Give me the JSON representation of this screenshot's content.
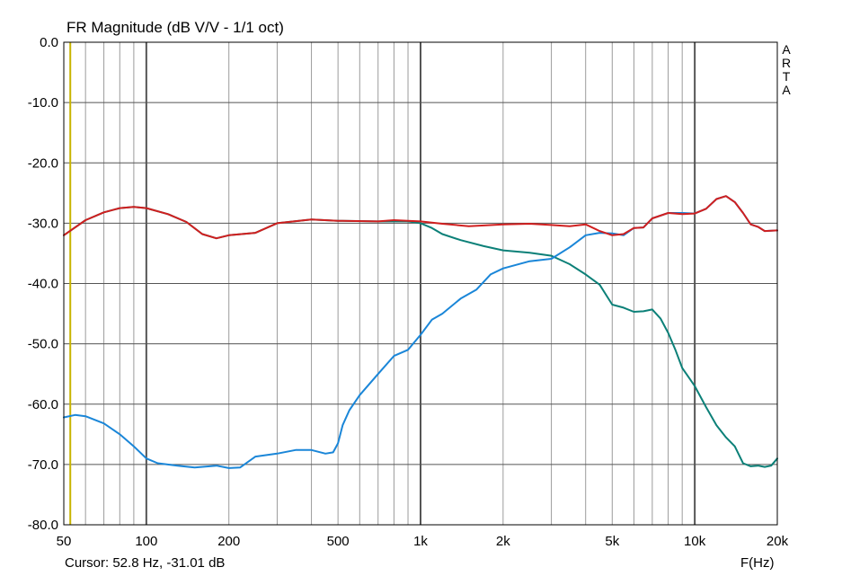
{
  "title": "FR Magnitude (dB V/V - 1/1 oct)",
  "cursor_readout": "Cursor: 52.8 Hz, -31.01 dB",
  "x_unit_label": "F(Hz)",
  "watermark": "ARTA",
  "colors": {
    "background": "#ffffff",
    "grid": "#9b9b9b",
    "major_grid": "#555555",
    "cursor_line": "#c8b400",
    "sum": "#d01f1f",
    "tweeter": "#1a86d8",
    "woofer": "#0c8078"
  },
  "chart_data": {
    "type": "line",
    "title": "FR Magnitude (dB V/V - 1/1 oct)",
    "xlabel": "F(Hz)",
    "ylabel": "",
    "x_scale": "log",
    "xlim": [
      50,
      20000
    ],
    "ylim": [
      -80,
      0
    ],
    "grid": true,
    "x_ticks": [
      {
        "value": 50,
        "label": "50"
      },
      {
        "value": 100,
        "label": "100"
      },
      {
        "value": 200,
        "label": "200"
      },
      {
        "value": 500,
        "label": "500"
      },
      {
        "value": 1000,
        "label": "1k"
      },
      {
        "value": 2000,
        "label": "2k"
      },
      {
        "value": 5000,
        "label": "5k"
      },
      {
        "value": 10000,
        "label": "10k"
      },
      {
        "value": 20000,
        "label": "20k"
      }
    ],
    "y_ticks": [
      {
        "value": 0,
        "label": "0.0"
      },
      {
        "value": -10,
        "label": "-10.0"
      },
      {
        "value": -20,
        "label": "-20.0"
      },
      {
        "value": -30,
        "label": "-30.0"
      },
      {
        "value": -40,
        "label": "-40.0"
      },
      {
        "value": -50,
        "label": "-50.0"
      },
      {
        "value": -60,
        "label": "-60.0"
      },
      {
        "value": -70,
        "label": "-70.0"
      },
      {
        "value": -80,
        "label": "-80.0"
      }
    ],
    "cursor": {
      "x": 52.8,
      "y": -31.01
    },
    "series": [
      {
        "id": "woofer",
        "color": "#0c8078",
        "points": [
          [
            50,
            -32
          ],
          [
            60,
            -29.5
          ],
          [
            70,
            -28.2
          ],
          [
            80,
            -27.5
          ],
          [
            90,
            -27.3
          ],
          [
            100,
            -27.5
          ],
          [
            120,
            -28.5
          ],
          [
            140,
            -29.8
          ],
          [
            160,
            -31.8
          ],
          [
            180,
            -32.5
          ],
          [
            200,
            -32
          ],
          [
            250,
            -31.6
          ],
          [
            300,
            -30
          ],
          [
            400,
            -29.4
          ],
          [
            500,
            -29.6
          ],
          [
            700,
            -29.7
          ],
          [
            900,
            -29.7
          ],
          [
            1000,
            -30
          ],
          [
            1100,
            -30.8
          ],
          [
            1200,
            -31.8
          ],
          [
            1400,
            -32.8
          ],
          [
            1700,
            -33.8
          ],
          [
            2000,
            -34.5
          ],
          [
            2500,
            -34.9
          ],
          [
            3000,
            -35.4
          ],
          [
            3500,
            -36.8
          ],
          [
            4000,
            -38.5
          ],
          [
            4500,
            -40.2
          ],
          [
            5000,
            -43.5
          ],
          [
            5500,
            -44
          ],
          [
            6000,
            -44.7
          ],
          [
            6500,
            -44.6
          ],
          [
            7000,
            -44.3
          ],
          [
            7500,
            -45.8
          ],
          [
            8000,
            -48.2
          ],
          [
            8500,
            -51
          ],
          [
            9000,
            -54
          ],
          [
            10000,
            -57
          ],
          [
            11000,
            -60.5
          ],
          [
            12000,
            -63.5
          ],
          [
            13000,
            -65.5
          ],
          [
            14000,
            -67
          ],
          [
            15000,
            -69.8
          ],
          [
            16000,
            -70.3
          ],
          [
            17000,
            -70.2
          ],
          [
            18000,
            -70.4
          ],
          [
            19000,
            -70.2
          ],
          [
            20000,
            -69
          ]
        ]
      },
      {
        "id": "tweeter",
        "color": "#1a86d8",
        "points": [
          [
            50,
            -62.2
          ],
          [
            55,
            -61.8
          ],
          [
            60,
            -62
          ],
          [
            70,
            -63.2
          ],
          [
            80,
            -65
          ],
          [
            90,
            -67
          ],
          [
            100,
            -69
          ],
          [
            110,
            -69.8
          ],
          [
            130,
            -70.2
          ],
          [
            150,
            -70.5
          ],
          [
            180,
            -70.2
          ],
          [
            200,
            -70.6
          ],
          [
            220,
            -70.5
          ],
          [
            250,
            -68.7
          ],
          [
            300,
            -68.2
          ],
          [
            350,
            -67.6
          ],
          [
            400,
            -67.6
          ],
          [
            450,
            -68.2
          ],
          [
            480,
            -68
          ],
          [
            500,
            -66.5
          ],
          [
            520,
            -63.5
          ],
          [
            550,
            -61
          ],
          [
            600,
            -58.5
          ],
          [
            700,
            -55
          ],
          [
            800,
            -52
          ],
          [
            900,
            -51
          ],
          [
            1000,
            -48.5
          ],
          [
            1100,
            -46
          ],
          [
            1200,
            -45
          ],
          [
            1400,
            -42.5
          ],
          [
            1600,
            -41
          ],
          [
            1800,
            -38.5
          ],
          [
            2000,
            -37.5
          ],
          [
            2500,
            -36.3
          ],
          [
            3000,
            -35.9
          ],
          [
            3500,
            -34
          ],
          [
            4000,
            -32
          ],
          [
            4500,
            -31.6
          ],
          [
            5000,
            -31.7
          ],
          [
            5500,
            -32
          ],
          [
            6000,
            -30.8
          ],
          [
            6500,
            -30.7
          ],
          [
            7000,
            -29.2
          ],
          [
            8000,
            -28.3
          ],
          [
            9000,
            -28.3
          ],
          [
            10000,
            -28.4
          ],
          [
            11000,
            -27.6
          ],
          [
            12000,
            -26
          ],
          [
            13000,
            -25.5
          ],
          [
            14000,
            -26.5
          ],
          [
            15000,
            -28.3
          ],
          [
            16000,
            -30.2
          ],
          [
            17000,
            -30.6
          ],
          [
            18000,
            -31.3
          ],
          [
            20000,
            -31.2
          ]
        ]
      },
      {
        "id": "sum",
        "color": "#d01f1f",
        "points": [
          [
            50,
            -32
          ],
          [
            60,
            -29.5
          ],
          [
            70,
            -28.2
          ],
          [
            80,
            -27.5
          ],
          [
            90,
            -27.3
          ],
          [
            100,
            -27.5
          ],
          [
            120,
            -28.5
          ],
          [
            140,
            -29.8
          ],
          [
            160,
            -31.8
          ],
          [
            180,
            -32.5
          ],
          [
            200,
            -32
          ],
          [
            250,
            -31.6
          ],
          [
            300,
            -30
          ],
          [
            400,
            -29.4
          ],
          [
            500,
            -29.6
          ],
          [
            700,
            -29.7
          ],
          [
            800,
            -29.5
          ],
          [
            900,
            -29.6
          ],
          [
            1000,
            -29.7
          ],
          [
            1200,
            -30.1
          ],
          [
            1500,
            -30.5
          ],
          [
            2000,
            -30.2
          ],
          [
            2500,
            -30.1
          ],
          [
            3000,
            -30.3
          ],
          [
            3500,
            -30.5
          ],
          [
            4000,
            -30.2
          ],
          [
            4500,
            -31.3
          ],
          [
            5000,
            -32
          ],
          [
            5500,
            -31.8
          ],
          [
            6000,
            -30.8
          ],
          [
            6500,
            -30.7
          ],
          [
            7000,
            -29.2
          ],
          [
            8000,
            -28.3
          ],
          [
            9000,
            -28.5
          ],
          [
            10000,
            -28.4
          ],
          [
            11000,
            -27.6
          ],
          [
            12000,
            -26
          ],
          [
            13000,
            -25.5
          ],
          [
            14000,
            -26.5
          ],
          [
            15000,
            -28.3
          ],
          [
            16000,
            -30.2
          ],
          [
            17000,
            -30.6
          ],
          [
            18000,
            -31.3
          ],
          [
            20000,
            -31.2
          ]
        ]
      }
    ]
  }
}
